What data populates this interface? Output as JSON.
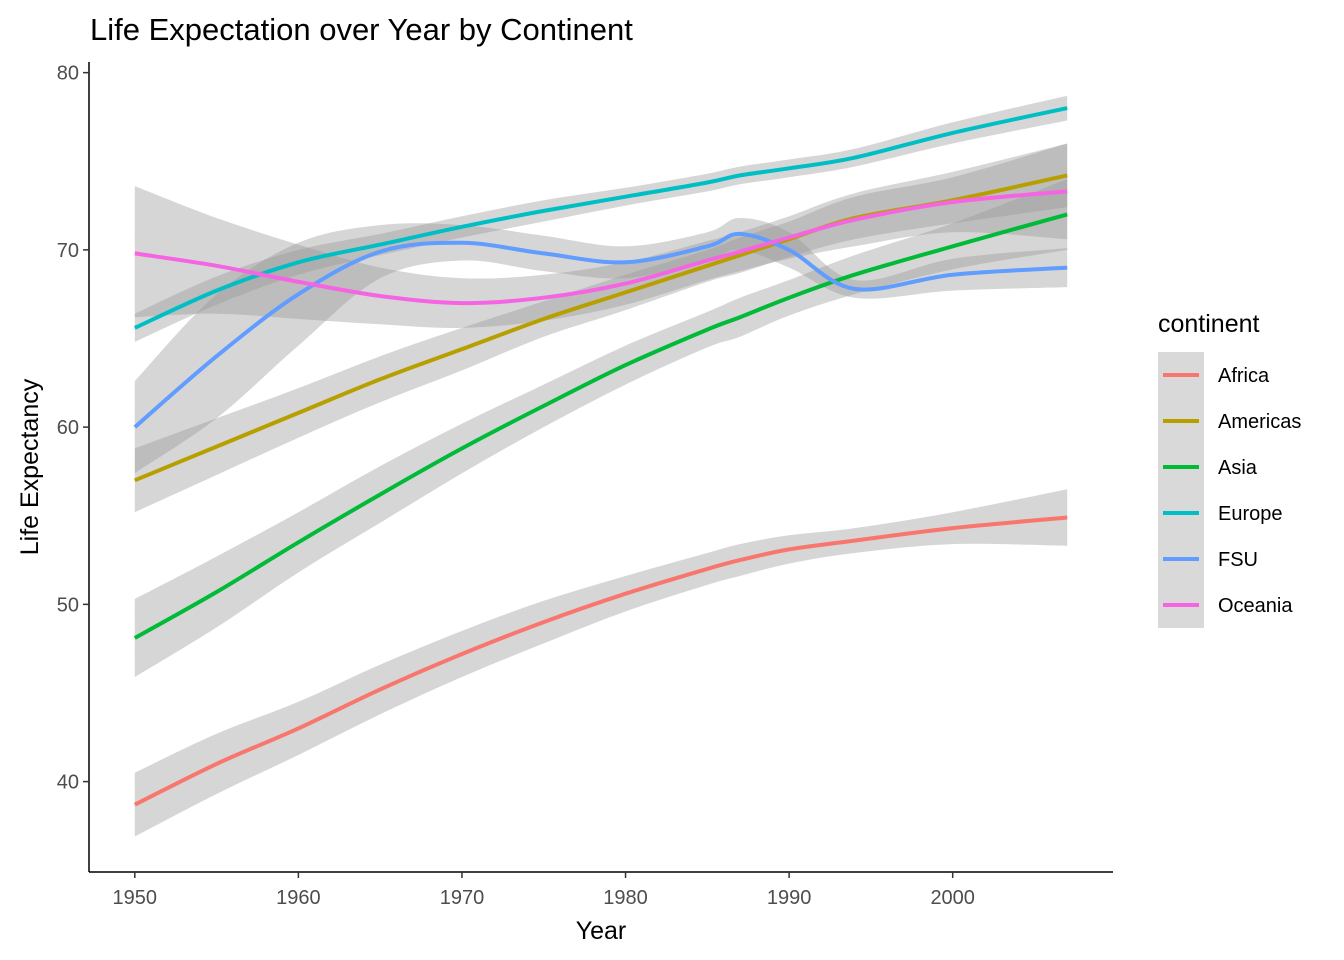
{
  "chart_data": {
    "type": "line",
    "title": "Life Expectation over Year by Continent",
    "xlabel": "Year",
    "ylabel": "Life Expectancy",
    "xlim": [
      1947.2,
      2009.8
    ],
    "ylim": [
      34.9,
      80.6
    ],
    "xticks": [
      1950,
      1960,
      1970,
      1980,
      1990,
      2000
    ],
    "yticks": [
      40,
      50,
      60,
      70,
      80
    ],
    "grid": false,
    "legend": {
      "title": "continent",
      "position": "right"
    },
    "x": [
      1950,
      1955,
      1960,
      1965,
      1970,
      1975,
      1980,
      1985,
      1987,
      1990,
      1994,
      2000,
      2007
    ],
    "series": [
      {
        "name": "Africa",
        "color": "#F8766D",
        "values": [
          38.7,
          41.0,
          43.0,
          45.2,
          47.2,
          49.0,
          50.6,
          52.0,
          52.5,
          53.1,
          53.6,
          54.3,
          54.9
        ],
        "lower": [
          36.9,
          39.3,
          41.5,
          43.8,
          45.9,
          47.8,
          49.6,
          51.1,
          51.6,
          52.3,
          52.9,
          53.4,
          53.3
        ],
        "upper": [
          40.5,
          42.7,
          44.5,
          46.6,
          48.5,
          50.2,
          51.6,
          52.9,
          53.4,
          53.9,
          54.3,
          55.2,
          56.5
        ]
      },
      {
        "name": "Americas",
        "color": "#B79F00",
        "values": [
          57.0,
          58.9,
          60.8,
          62.7,
          64.4,
          66.1,
          67.6,
          69.1,
          69.7,
          70.6,
          71.8,
          72.8,
          74.2
        ],
        "lower": [
          55.2,
          57.3,
          59.4,
          61.4,
          63.2,
          65.1,
          66.6,
          68.2,
          68.7,
          69.6,
          70.6,
          71.5,
          72.4
        ],
        "upper": [
          58.8,
          60.5,
          62.2,
          64.0,
          65.6,
          67.1,
          68.6,
          70.0,
          70.7,
          71.6,
          73.0,
          74.1,
          76.0
        ]
      },
      {
        "name": "Asia",
        "color": "#00BA38",
        "values": [
          48.1,
          50.7,
          53.5,
          56.2,
          58.8,
          61.2,
          63.5,
          65.5,
          66.2,
          67.3,
          68.6,
          70.2,
          72.0
        ],
        "lower": [
          45.9,
          48.7,
          51.8,
          54.6,
          57.4,
          60.0,
          62.4,
          64.5,
          65.1,
          66.3,
          67.5,
          68.9,
          70.0
        ],
        "upper": [
          50.3,
          52.7,
          55.2,
          57.8,
          60.2,
          62.4,
          64.6,
          66.5,
          67.3,
          68.3,
          69.7,
          71.5,
          74.0
        ]
      },
      {
        "name": "Europe",
        "color": "#00BFC4",
        "values": [
          65.6,
          67.7,
          69.3,
          70.3,
          71.3,
          72.2,
          73.0,
          73.8,
          74.2,
          74.6,
          75.2,
          76.6,
          78.0
        ],
        "lower": [
          64.8,
          66.9,
          68.6,
          69.7,
          70.7,
          71.6,
          72.5,
          73.3,
          73.7,
          74.1,
          74.7,
          76.0,
          77.3
        ],
        "upper": [
          66.4,
          68.5,
          70.0,
          70.9,
          71.9,
          72.8,
          73.5,
          74.3,
          74.7,
          75.1,
          75.7,
          77.2,
          78.7
        ]
      },
      {
        "name": "FSU",
        "color": "#619CFF",
        "values": [
          60.0,
          64.0,
          67.5,
          69.9,
          70.4,
          69.8,
          69.3,
          70.2,
          70.9,
          70.0,
          67.8,
          68.6,
          69.0
        ],
        "lower": [
          57.4,
          60.5,
          64.6,
          68.4,
          69.4,
          68.8,
          68.4,
          69.4,
          70.0,
          69.0,
          67.3,
          67.7,
          67.9
        ],
        "upper": [
          62.6,
          67.5,
          70.4,
          71.4,
          71.4,
          70.8,
          70.2,
          71.0,
          71.8,
          71.0,
          68.3,
          69.5,
          70.1
        ]
      },
      {
        "name": "Oceania",
        "color": "#F564E3",
        "values": [
          69.8,
          69.1,
          68.2,
          67.4,
          67.0,
          67.3,
          68.1,
          69.4,
          69.9,
          70.7,
          71.7,
          72.7,
          73.3
        ],
        "lower": [
          66.2,
          66.4,
          66.1,
          65.8,
          65.6,
          66.0,
          66.9,
          68.3,
          68.8,
          69.5,
          70.2,
          71.0,
          70.6
        ],
        "upper": [
          73.6,
          71.8,
          70.3,
          69.0,
          68.4,
          68.6,
          69.3,
          70.5,
          71.0,
          71.9,
          73.2,
          74.4,
          76.0
        ]
      }
    ]
  }
}
